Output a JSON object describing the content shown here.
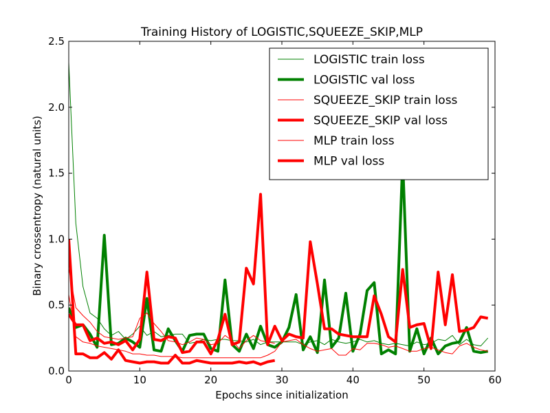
{
  "chart_data": {
    "type": "line",
    "title": "Training History of LOGISTIC,SQUEEZE_SKIP,MLP",
    "xlabel": "Epochs since initialization",
    "ylabel": "Binary crossentropy (natural units)",
    "xlim": [
      0,
      60
    ],
    "ylim": [
      0.0,
      2.5
    ],
    "xticks": [
      0,
      10,
      20,
      30,
      40,
      50,
      60
    ],
    "xtick_labels": [
      "0",
      "10",
      "20",
      "30",
      "40",
      "50",
      "60"
    ],
    "yticks": [
      0.0,
      0.5,
      1.0,
      1.5,
      2.0,
      2.5
    ],
    "ytick_labels": [
      "0.0",
      "0.5",
      "1.0",
      "1.5",
      "2.0",
      "2.5"
    ],
    "grid": false,
    "legend_position": "top-right",
    "series": [
      {
        "name": "LOGISTIC train loss",
        "color": "#008000",
        "width": 1,
        "x": [
          0,
          1,
          2,
          3,
          4,
          5,
          6,
          7,
          8,
          9,
          10,
          11,
          12,
          13,
          14,
          15,
          16,
          17,
          18,
          19,
          20,
          21,
          22,
          23,
          24,
          25,
          26,
          27,
          28,
          29,
          30,
          31,
          32,
          33,
          34,
          35,
          36,
          37,
          38,
          39,
          40,
          41,
          42,
          43,
          44,
          45,
          46,
          47,
          48,
          49,
          50,
          51,
          52,
          53,
          54,
          55,
          56,
          57,
          58,
          59
        ],
        "y": [
          2.34,
          1.12,
          0.64,
          0.44,
          0.4,
          0.32,
          0.27,
          0.3,
          0.24,
          0.28,
          0.34,
          0.27,
          0.3,
          0.26,
          0.27,
          0.28,
          0.28,
          0.21,
          0.22,
          0.24,
          0.23,
          0.24,
          0.24,
          0.23,
          0.23,
          0.22,
          0.24,
          0.2,
          0.22,
          0.22,
          0.22,
          0.22,
          0.22,
          0.2,
          0.22,
          0.23,
          0.2,
          0.24,
          0.22,
          0.21,
          0.22,
          0.24,
          0.22,
          0.23,
          0.21,
          0.2,
          0.21,
          0.2,
          0.19,
          0.22,
          0.2,
          0.21,
          0.24,
          0.23,
          0.27,
          0.2,
          0.24,
          0.2,
          0.19,
          0.25
        ]
      },
      {
        "name": "LOGISTIC val loss",
        "color": "#008000",
        "width": 4,
        "x": [
          0,
          1,
          2,
          3,
          4,
          5,
          6,
          7,
          8,
          9,
          10,
          11,
          12,
          13,
          14,
          15,
          16,
          17,
          18,
          19,
          20,
          21,
          22,
          23,
          24,
          25,
          26,
          27,
          28,
          29,
          30,
          31,
          32,
          33,
          34,
          35,
          36,
          37,
          38,
          39,
          40,
          41,
          42,
          43,
          44,
          45,
          46,
          47,
          48,
          49,
          50,
          51,
          52,
          53,
          54,
          55,
          56,
          57,
          58,
          59
        ],
        "y": [
          0.48,
          0.33,
          0.35,
          0.28,
          0.18,
          1.03,
          0.2,
          0.21,
          0.25,
          0.22,
          0.18,
          0.55,
          0.16,
          0.15,
          0.32,
          0.23,
          0.15,
          0.27,
          0.28,
          0.28,
          0.17,
          0.15,
          0.69,
          0.2,
          0.15,
          0.28,
          0.17,
          0.34,
          0.2,
          0.18,
          0.22,
          0.33,
          0.58,
          0.16,
          0.26,
          0.14,
          0.69,
          0.18,
          0.25,
          0.59,
          0.15,
          0.28,
          0.61,
          0.67,
          0.13,
          0.16,
          0.13,
          1.6,
          0.15,
          0.32,
          0.13,
          0.25,
          0.13,
          0.19,
          0.21,
          0.22,
          0.33,
          0.15,
          0.14,
          0.15
        ]
      },
      {
        "name": "SQUEEZE_SKIP train loss",
        "color": "#ff0000",
        "width": 1,
        "x": [
          0,
          1,
          2,
          3,
          4,
          5,
          6,
          7,
          8,
          9,
          10,
          11,
          12,
          13,
          14,
          15,
          16,
          17,
          18,
          19,
          20,
          21,
          22,
          23,
          24,
          25,
          26,
          27,
          28,
          29,
          30,
          31,
          32,
          33,
          34,
          35,
          36,
          37,
          38,
          39,
          40,
          41,
          42,
          43,
          44,
          45,
          46,
          47,
          48,
          49,
          50,
          51,
          52,
          53,
          54,
          55,
          56,
          57,
          58,
          59
        ],
        "y": [
          0.58,
          0.26,
          0.22,
          0.21,
          0.19,
          0.18,
          0.17,
          0.16,
          0.15,
          0.13,
          0.13,
          0.12,
          0.12,
          0.11,
          0.11,
          0.11,
          0.1,
          0.1,
          0.1,
          0.1,
          0.1,
          0.1,
          0.1,
          0.1,
          0.1,
          0.1,
          0.1,
          0.1,
          0.12,
          0.15,
          0.22,
          0.23,
          0.24,
          0.2,
          0.17,
          0.15,
          0.16,
          0.17,
          0.12,
          0.12,
          0.17,
          0.16,
          0.21,
          0.21,
          0.2,
          0.18,
          0.19,
          0.17,
          0.15,
          0.15,
          0.17,
          0.18,
          0.16,
          0.14,
          0.13,
          0.19,
          0.21,
          0.18,
          0.16,
          0.15
        ]
      },
      {
        "name": "SQUEEZE_SKIP val loss",
        "color": "#ff0000",
        "width": 4,
        "x": [
          0,
          1,
          2,
          3,
          4,
          5,
          6,
          7,
          8,
          9,
          10,
          11,
          12,
          13,
          14,
          15,
          16,
          17,
          18,
          19,
          20,
          21,
          22,
          23,
          24,
          25,
          26,
          27,
          28,
          29,
          30,
          31,
          32,
          33,
          34,
          35,
          36,
          37,
          38,
          39,
          40,
          41,
          42,
          43,
          44,
          45,
          46,
          47,
          48,
          49,
          50,
          51,
          52,
          53,
          54,
          55,
          56,
          57,
          58,
          59
        ],
        "y": [
          0.43,
          0.35,
          0.35,
          0.23,
          0.25,
          0.21,
          0.22,
          0.2,
          0.23,
          0.16,
          0.24,
          0.75,
          0.24,
          0.23,
          0.26,
          0.25,
          0.14,
          0.15,
          0.22,
          0.22,
          0.13,
          0.24,
          0.43,
          0.2,
          0.22,
          0.78,
          0.66,
          1.34,
          0.2,
          0.34,
          0.23,
          0.28,
          0.26,
          0.25,
          0.98,
          0.66,
          0.32,
          0.32,
          0.28,
          0.27,
          0.26,
          0.26,
          0.26,
          0.57,
          0.43,
          0.26,
          0.22,
          0.77,
          0.33,
          0.35,
          0.36,
          0.17,
          0.75,
          0.35,
          0.73,
          0.3,
          0.31,
          0.33,
          0.41,
          0.4
        ]
      },
      {
        "name": "MLP train loss",
        "color": "#ff0000",
        "width": 1,
        "x": [
          0,
          1,
          2,
          3,
          4,
          5,
          6,
          7,
          8,
          9,
          10,
          11,
          12,
          13,
          14,
          15,
          16,
          17,
          18,
          19,
          20,
          21,
          22,
          23,
          24,
          25,
          26,
          27,
          28,
          29
        ],
        "y": [
          0.78,
          0.48,
          0.42,
          0.37,
          0.3,
          0.26,
          0.25,
          0.24,
          0.25,
          0.26,
          0.4,
          0.44,
          0.36,
          0.3,
          0.23,
          0.22,
          0.2,
          0.22,
          0.25,
          0.24,
          0.2,
          0.21,
          0.27,
          0.23,
          0.17,
          0.23,
          0.27,
          0.23,
          0.22,
          0.21
        ]
      },
      {
        "name": "MLP val loss",
        "color": "#ff0000",
        "width": 4,
        "x": [
          0,
          1,
          2,
          3,
          4,
          5,
          6,
          7,
          8,
          9,
          10,
          11,
          12,
          13,
          14,
          15,
          16,
          17,
          18,
          19,
          20,
          21,
          22,
          23,
          24,
          25,
          26,
          27,
          28,
          29
        ],
        "y": [
          1.0,
          0.13,
          0.13,
          0.1,
          0.1,
          0.14,
          0.09,
          0.16,
          0.08,
          0.07,
          0.06,
          0.07,
          0.07,
          0.06,
          0.06,
          0.12,
          0.06,
          0.06,
          0.08,
          0.07,
          0.06,
          0.06,
          0.06,
          0.06,
          0.07,
          0.06,
          0.07,
          0.05,
          0.07,
          0.08
        ]
      }
    ]
  }
}
